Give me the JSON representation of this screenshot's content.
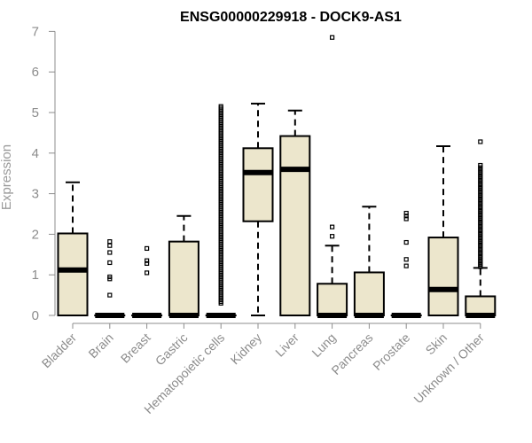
{
  "chart_data": {
    "type": "box",
    "title": "ENSG00000229918 - DOCK9-AS1",
    "xlabel": "",
    "ylabel": "Expression",
    "ylim": [
      0,
      7
    ],
    "yticks": [
      0,
      1,
      2,
      3,
      4,
      5,
      6,
      7
    ],
    "categories": [
      "Bladder",
      "Brain",
      "Breast",
      "Gastric",
      "Hematopoietic cells",
      "Kidney",
      "Liver",
      "Lung",
      "Pancreas",
      "Prostate",
      "Skin",
      "Unknown / Other"
    ],
    "boxes": [
      {
        "q1": 0,
        "median": 1.12,
        "q3": 2.02,
        "whisker_low": 0,
        "whisker_high": 3.28,
        "outliers": []
      },
      {
        "q1": 0,
        "median": 0,
        "q3": 0,
        "whisker_low": 0,
        "whisker_high": 0,
        "outliers": [
          0.5,
          0.9,
          0.95,
          1.3,
          1.55,
          1.72,
          1.82
        ]
      },
      {
        "q1": 0,
        "median": 0,
        "q3": 0,
        "whisker_low": 0,
        "whisker_high": 0,
        "outliers": [
          1.05,
          1.28,
          1.35,
          1.65
        ]
      },
      {
        "q1": 0,
        "median": 0,
        "q3": 1.82,
        "whisker_low": 0,
        "whisker_high": 2.45,
        "outliers": []
      },
      {
        "q1": 0,
        "median": 0,
        "q3": 0,
        "whisker_low": 0,
        "whisker_high": 0,
        "outliers_range": [
          0.3,
          5.15
        ],
        "outliers_count": 120
      },
      {
        "q1": 2.32,
        "median": 3.52,
        "q3": 4.12,
        "whisker_low": 0,
        "whisker_high": 5.22,
        "outliers": []
      },
      {
        "q1": 0,
        "median": 3.6,
        "q3": 4.42,
        "whisker_low": 0,
        "whisker_high": 5.05,
        "outliers": []
      },
      {
        "q1": 0,
        "median": 0,
        "q3": 0.78,
        "whisker_low": 0,
        "whisker_high": 1.72,
        "outliers": [
          1.95,
          2.18,
          6.85
        ]
      },
      {
        "q1": 0,
        "median": 0,
        "q3": 1.06,
        "whisker_low": 0,
        "whisker_high": 2.68,
        "outliers": []
      },
      {
        "q1": 0,
        "median": 0,
        "q3": 0,
        "whisker_low": 0,
        "whisker_high": 0,
        "outliers": [
          1.22,
          1.38,
          1.8,
          2.38,
          2.45,
          2.52
        ]
      },
      {
        "q1": 0,
        "median": 0.64,
        "q3": 1.92,
        "whisker_low": 0,
        "whisker_high": 4.17,
        "outliers": []
      },
      {
        "q1": 0,
        "median": 0,
        "q3": 0.47,
        "whisker_low": 0,
        "whisker_high": 1.17,
        "outliers_range": [
          1.2,
          3.7
        ],
        "outliers_count": 45,
        "extra_outliers": [
          4.28
        ]
      }
    ],
    "box_fill": "#ece6cc",
    "median_color": "#000000",
    "axis_color": "#8c8c8c",
    "grid": false
  }
}
